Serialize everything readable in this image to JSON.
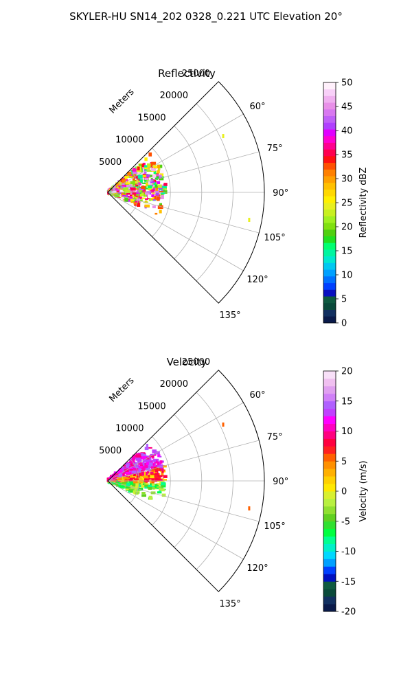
{
  "figure": {
    "suptitle": "SKYLER-HU  SN14_202  0328_0.221 UTC Elevation 20°"
  },
  "chart_data": [
    {
      "type": "polar-sector",
      "title": "Reflectivity",
      "radial_label": "Meters",
      "r_ticks": [
        5000,
        10000,
        15000,
        20000,
        25000
      ],
      "r_max": 25000,
      "theta_ticks": [
        "60°",
        "75°",
        "90°",
        "105°",
        "120°",
        "135°"
      ],
      "theta_min_deg": 45,
      "theta_max_deg": 135,
      "grid": true,
      "colorbar": {
        "label": "Reflectivity dBZ",
        "min": 0,
        "max": 50,
        "ticks": [
          0,
          5,
          10,
          15,
          20,
          25,
          30,
          35,
          40,
          45,
          50
        ],
        "colors": [
          "#0a1a4a",
          "#123060",
          "#0a4a3a",
          "#0f5a40",
          "#0a10c0",
          "#0040ff",
          "#0070ff",
          "#00a0ff",
          "#00c8f0",
          "#00e8d0",
          "#00f5a0",
          "#00ff70",
          "#20e020",
          "#50d010",
          "#80e010",
          "#a0f020",
          "#c8f020",
          "#e8f020",
          "#fff000",
          "#ffd800",
          "#ffc000",
          "#ffa000",
          "#ff8000",
          "#ff5000",
          "#ff1010",
          "#ff0050",
          "#ff0090",
          "#ff00d0",
          "#e000ff",
          "#b040ff",
          "#c060f8",
          "#d878f0",
          "#e890e8",
          "#f0b0f0",
          "#f8d0f8",
          "#fff0fb"
        ]
      },
      "echo_color_range": [
        10,
        36
      ]
    },
    {
      "type": "polar-sector",
      "title": "Velocity",
      "radial_label": "Meters",
      "r_ticks": [
        5000,
        10000,
        15000,
        20000,
        25000
      ],
      "r_max": 25000,
      "theta_ticks": [
        "60°",
        "75°",
        "90°",
        "105°",
        "120°",
        "135°"
      ],
      "theta_min_deg": 45,
      "theta_max_deg": 135,
      "grid": true,
      "colorbar": {
        "label": "Velocity (m/s)",
        "min": -20,
        "max": 20,
        "ticks": [
          -20,
          -15,
          -10,
          -5,
          0,
          5,
          10,
          15,
          20
        ],
        "colors": [
          "#0a1a4a",
          "#123060",
          "#0a4a3a",
          "#0f5a40",
          "#0010c0",
          "#0040ff",
          "#00a0ff",
          "#00d8ff",
          "#00f0c8",
          "#00ff90",
          "#00ff40",
          "#30e030",
          "#60d020",
          "#90e030",
          "#b8f040",
          "#d8f030",
          "#ffe800",
          "#ffd000",
          "#ffb000",
          "#ff9000",
          "#ff6000",
          "#ff2020",
          "#ff0040",
          "#ff0080",
          "#ff00c0",
          "#ff00ff",
          "#c040ff",
          "#b060ff",
          "#d080f8",
          "#e0a0f0",
          "#f0c0f0",
          "#f8e0f8"
        ]
      },
      "echo_color_range": [
        8,
        27
      ]
    }
  ]
}
